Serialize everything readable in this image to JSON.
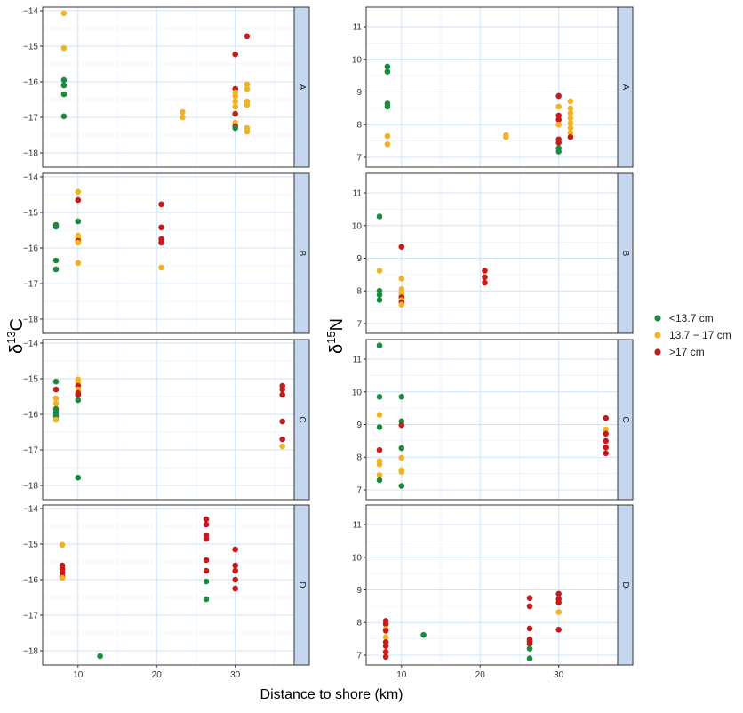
{
  "chart_data": {
    "type": "scatter",
    "xlabel": "Distance to shore (km)",
    "x_ticks": [
      10,
      20,
      30
    ],
    "xlim": [
      5.5,
      37.5
    ],
    "legend": {
      "placement": "right",
      "entries": [
        {
          "label": "<13.7 cm",
          "color": "#1a8a3e"
        },
        {
          "label": "13.7 − 17 cm",
          "color": "#f0b323"
        },
        {
          "label": ">17 cm",
          "color": "#c71a1a"
        }
      ]
    },
    "rows": [
      "A",
      "B",
      "C",
      "D"
    ],
    "columns": [
      {
        "key": "d13c",
        "ylabel_base": "δ",
        "ylabel_sup": "13",
        "ylabel_el": "C",
        "ylim": [
          -18.4,
          -13.9
        ],
        "y_ticks": [
          -18,
          -17,
          -16,
          -15,
          -14
        ],
        "panels": [
          {
            "strip": "A",
            "points": [
              [
                8.2,
                -14.07,
                1
              ],
              [
                8.2,
                -15.05,
                1
              ],
              [
                8.2,
                -15.95,
                0
              ],
              [
                8.2,
                -16.1,
                0
              ],
              [
                8.2,
                -16.35,
                0
              ],
              [
                8.2,
                -16.97,
                0
              ],
              [
                23.3,
                -16.85,
                1
              ],
              [
                23.3,
                -17.0,
                1
              ],
              [
                30.0,
                -15.23,
                2
              ],
              [
                30.0,
                -16.2,
                2
              ],
              [
                30.0,
                -16.3,
                1
              ],
              [
                30.0,
                -16.4,
                1
              ],
              [
                30.0,
                -16.55,
                1
              ],
              [
                30.0,
                -16.7,
                1
              ],
              [
                30.0,
                -16.9,
                2
              ],
              [
                30.0,
                -17.15,
                1
              ],
              [
                30.0,
                -17.25,
                2
              ],
              [
                30.0,
                -17.3,
                0
              ],
              [
                31.5,
                -14.72,
                2
              ],
              [
                31.5,
                -16.07,
                1
              ],
              [
                31.5,
                -16.2,
                1
              ],
              [
                31.5,
                -16.55,
                1
              ],
              [
                31.5,
                -16.65,
                1
              ],
              [
                31.5,
                -17.3,
                1
              ],
              [
                31.5,
                -17.4,
                1
              ]
            ]
          },
          {
            "strip": "B",
            "points": [
              [
                7.2,
                -15.35,
                0
              ],
              [
                7.2,
                -15.4,
                0
              ],
              [
                7.2,
                -16.35,
                0
              ],
              [
                7.2,
                -16.6,
                0
              ],
              [
                10.0,
                -14.42,
                1
              ],
              [
                10.0,
                -14.65,
                2
              ],
              [
                10.0,
                -15.25,
                0
              ],
              [
                10.0,
                -15.65,
                1
              ],
              [
                10.0,
                -15.72,
                1
              ],
              [
                10.0,
                -15.8,
                2
              ],
              [
                10.0,
                -15.85,
                1
              ],
              [
                10.0,
                -16.42,
                1
              ],
              [
                20.6,
                -14.77,
                2
              ],
              [
                20.6,
                -15.42,
                2
              ],
              [
                20.6,
                -15.75,
                2
              ],
              [
                20.6,
                -15.85,
                2
              ],
              [
                20.6,
                -16.55,
                1
              ]
            ]
          },
          {
            "strip": "C",
            "points": [
              [
                7.2,
                -15.08,
                0
              ],
              [
                7.2,
                -15.3,
                2
              ],
              [
                7.2,
                -15.55,
                1
              ],
              [
                7.2,
                -15.7,
                1
              ],
              [
                7.2,
                -15.85,
                0
              ],
              [
                7.2,
                -15.95,
                0
              ],
              [
                7.2,
                -16.05,
                0
              ],
              [
                7.2,
                -16.15,
                1
              ],
              [
                10.0,
                -15.02,
                1
              ],
              [
                10.0,
                -15.1,
                1
              ],
              [
                10.0,
                -15.2,
                2
              ],
              [
                10.0,
                -15.3,
                1
              ],
              [
                10.0,
                -15.4,
                2
              ],
              [
                10.0,
                -15.45,
                2
              ],
              [
                10.0,
                -15.6,
                0
              ],
              [
                10.0,
                -17.78,
                0
              ],
              [
                36.0,
                -15.2,
                2
              ],
              [
                36.0,
                -15.3,
                2
              ],
              [
                36.0,
                -15.45,
                2
              ],
              [
                36.0,
                -16.2,
                2
              ],
              [
                36.0,
                -16.7,
                2
              ],
              [
                36.0,
                -16.9,
                1
              ]
            ]
          },
          {
            "strip": "D",
            "points": [
              [
                8.0,
                -15.02,
                1
              ],
              [
                8.0,
                -15.6,
                2
              ],
              [
                8.0,
                -15.7,
                2
              ],
              [
                8.0,
                -15.8,
                2
              ],
              [
                8.0,
                -15.9,
                2
              ],
              [
                8.0,
                -15.95,
                1
              ],
              [
                12.8,
                -18.15,
                0
              ],
              [
                26.3,
                -14.3,
                2
              ],
              [
                26.3,
                -14.45,
                2
              ],
              [
                26.3,
                -14.75,
                2
              ],
              [
                26.3,
                -14.85,
                2
              ],
              [
                26.3,
                -15.45,
                2
              ],
              [
                26.3,
                -15.75,
                2
              ],
              [
                26.3,
                -16.05,
                0
              ],
              [
                26.3,
                -16.55,
                0
              ],
              [
                30.0,
                -15.15,
                2
              ],
              [
                30.0,
                -15.6,
                2
              ],
              [
                30.0,
                -15.75,
                2
              ],
              [
                30.0,
                -16.0,
                2
              ],
              [
                30.0,
                -16.25,
                2
              ]
            ]
          }
        ]
      },
      {
        "key": "d15n",
        "ylabel_base": "δ",
        "ylabel_sup": "15",
        "ylabel_el": "N",
        "ylim": [
          6.7,
          11.6
        ],
        "y_ticks": [
          7,
          8,
          9,
          10,
          11
        ],
        "panels": [
          {
            "strip": "A",
            "points": [
              [
                8.2,
                9.78,
                0
              ],
              [
                8.2,
                9.62,
                0
              ],
              [
                8.2,
                8.65,
                0
              ],
              [
                8.2,
                8.55,
                0
              ],
              [
                8.2,
                7.65,
                1
              ],
              [
                8.2,
                7.4,
                1
              ],
              [
                23.3,
                7.68,
                1
              ],
              [
                23.3,
                7.62,
                1
              ],
              [
                30.0,
                8.88,
                2
              ],
              [
                30.0,
                8.55,
                1
              ],
              [
                30.0,
                8.28,
                2
              ],
              [
                30.0,
                8.15,
                2
              ],
              [
                30.0,
                8.0,
                1
              ],
              [
                30.0,
                7.55,
                2
              ],
              [
                30.0,
                7.45,
                2
              ],
              [
                30.0,
                7.28,
                0
              ],
              [
                30.0,
                7.18,
                0
              ],
              [
                31.5,
                8.72,
                1
              ],
              [
                31.5,
                8.5,
                1
              ],
              [
                31.5,
                8.35,
                1
              ],
              [
                31.5,
                8.2,
                1
              ],
              [
                31.5,
                8.05,
                1
              ],
              [
                31.5,
                7.9,
                1
              ],
              [
                31.5,
                7.75,
                1
              ],
              [
                31.5,
                7.62,
                2
              ]
            ]
          },
          {
            "strip": "B",
            "points": [
              [
                7.2,
                10.28,
                0
              ],
              [
                7.2,
                8.62,
                1
              ],
              [
                7.2,
                8.0,
                0
              ],
              [
                7.2,
                7.88,
                0
              ],
              [
                7.2,
                7.72,
                0
              ],
              [
                10.0,
                9.35,
                2
              ],
              [
                10.0,
                8.38,
                1
              ],
              [
                10.0,
                8.05,
                1
              ],
              [
                10.0,
                7.95,
                1
              ],
              [
                10.0,
                7.88,
                1
              ],
              [
                10.0,
                7.8,
                2
              ],
              [
                10.0,
                7.72,
                1
              ],
              [
                10.0,
                7.65,
                2
              ],
              [
                10.0,
                7.58,
                1
              ],
              [
                20.6,
                8.62,
                2
              ],
              [
                20.6,
                8.42,
                2
              ],
              [
                20.6,
                8.25,
                2
              ]
            ]
          },
          {
            "strip": "C",
            "points": [
              [
                7.2,
                11.42,
                0
              ],
              [
                7.2,
                9.85,
                0
              ],
              [
                7.2,
                9.3,
                1
              ],
              [
                7.2,
                8.92,
                0
              ],
              [
                7.2,
                8.22,
                2
              ],
              [
                7.2,
                7.88,
                1
              ],
              [
                7.2,
                7.78,
                1
              ],
              [
                7.2,
                7.45,
                1
              ],
              [
                7.2,
                7.3,
                0
              ],
              [
                10.0,
                9.85,
                0
              ],
              [
                10.0,
                9.1,
                0
              ],
              [
                10.0,
                8.98,
                2
              ],
              [
                10.0,
                8.28,
                0
              ],
              [
                10.0,
                7.98,
                1
              ],
              [
                10.0,
                7.6,
                1
              ],
              [
                10.0,
                7.55,
                1
              ],
              [
                10.0,
                7.12,
                0
              ],
              [
                36.0,
                9.2,
                2
              ],
              [
                36.0,
                8.85,
                1
              ],
              [
                36.0,
                8.72,
                2
              ],
              [
                36.0,
                8.5,
                2
              ],
              [
                36.0,
                8.3,
                2
              ],
              [
                36.0,
                8.12,
                2
              ]
            ]
          },
          {
            "strip": "D",
            "points": [
              [
                8.0,
                8.05,
                2
              ],
              [
                8.0,
                7.95,
                2
              ],
              [
                8.0,
                7.8,
                1
              ],
              [
                8.0,
                7.75,
                2
              ],
              [
                8.0,
                7.55,
                1
              ],
              [
                8.0,
                7.4,
                2
              ],
              [
                8.0,
                7.28,
                2
              ],
              [
                8.0,
                7.1,
                2
              ],
              [
                8.0,
                6.95,
                2
              ],
              [
                12.8,
                7.62,
                0
              ],
              [
                26.3,
                8.75,
                2
              ],
              [
                26.3,
                8.5,
                2
              ],
              [
                26.3,
                7.82,
                2
              ],
              [
                26.3,
                7.48,
                2
              ],
              [
                26.3,
                7.42,
                2
              ],
              [
                26.3,
                7.35,
                2
              ],
              [
                26.3,
                7.2,
                0
              ],
              [
                26.3,
                6.9,
                0
              ],
              [
                30.0,
                8.88,
                2
              ],
              [
                30.0,
                8.72,
                2
              ],
              [
                30.0,
                8.62,
                2
              ],
              [
                30.0,
                8.32,
                1
              ],
              [
                30.0,
                7.78,
                2
              ]
            ]
          }
        ]
      }
    ]
  }
}
